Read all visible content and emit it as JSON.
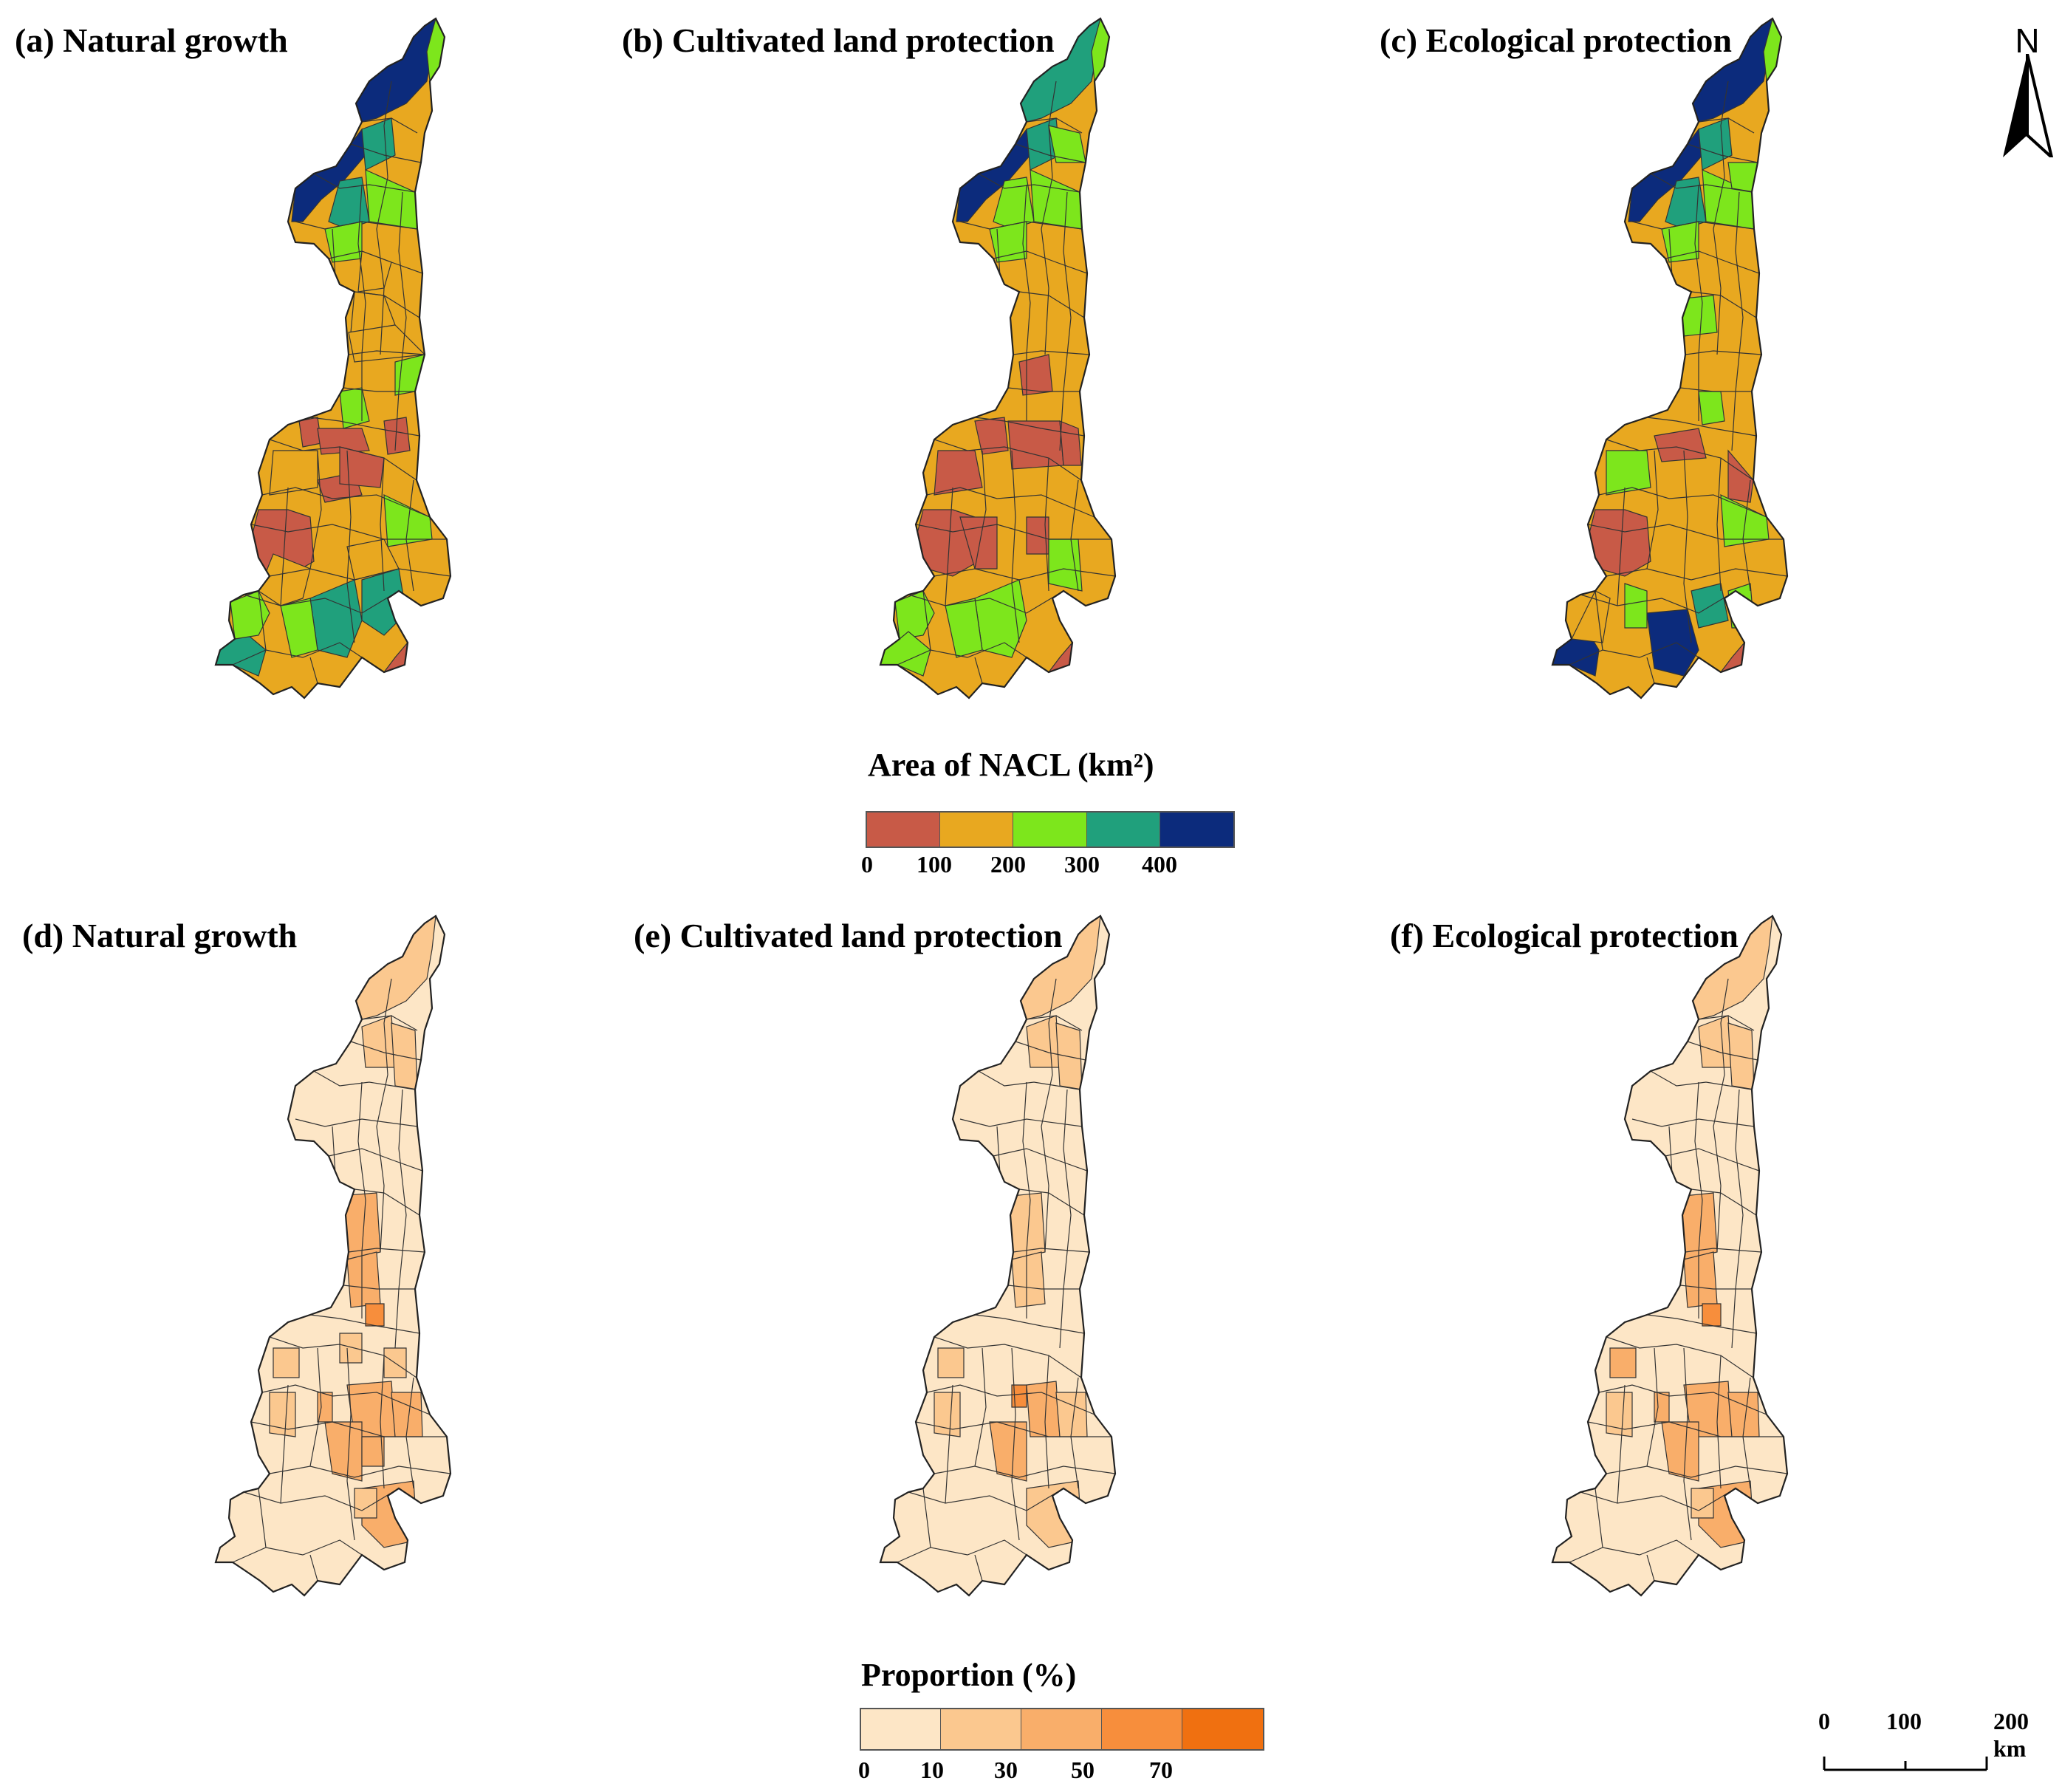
{
  "panels": {
    "a": "(a) Natural growth",
    "b": "(b) Cultivated land protection",
    "c": "(c) Ecological protection",
    "d": "(d) Natural growth",
    "e": "(e) Cultivated land protection",
    "f": "(f) Ecological protection"
  },
  "legend_area": {
    "title": "Area of NACL (km²)",
    "ticks": [
      "0",
      "100",
      "200",
      "300",
      "400"
    ],
    "colors": [
      "#c85a47",
      "#e8a820",
      "#7de61c",
      "#20a07c",
      "#0c2b7c"
    ]
  },
  "legend_prop": {
    "title": "Proportion (%)",
    "ticks": [
      "0",
      "10",
      "30",
      "50",
      "70"
    ],
    "colors": [
      "#fde6c6",
      "#fbc88f",
      "#f9ae6a",
      "#f78e3c",
      "#f07010"
    ]
  },
  "north": {
    "label": "N"
  },
  "scale": {
    "ticks": [
      "0",
      "100",
      "200 km"
    ]
  },
  "colors": {
    "outline": "#333333",
    "base_area": "#e8a820",
    "base_prop": "#fde6c6"
  }
}
